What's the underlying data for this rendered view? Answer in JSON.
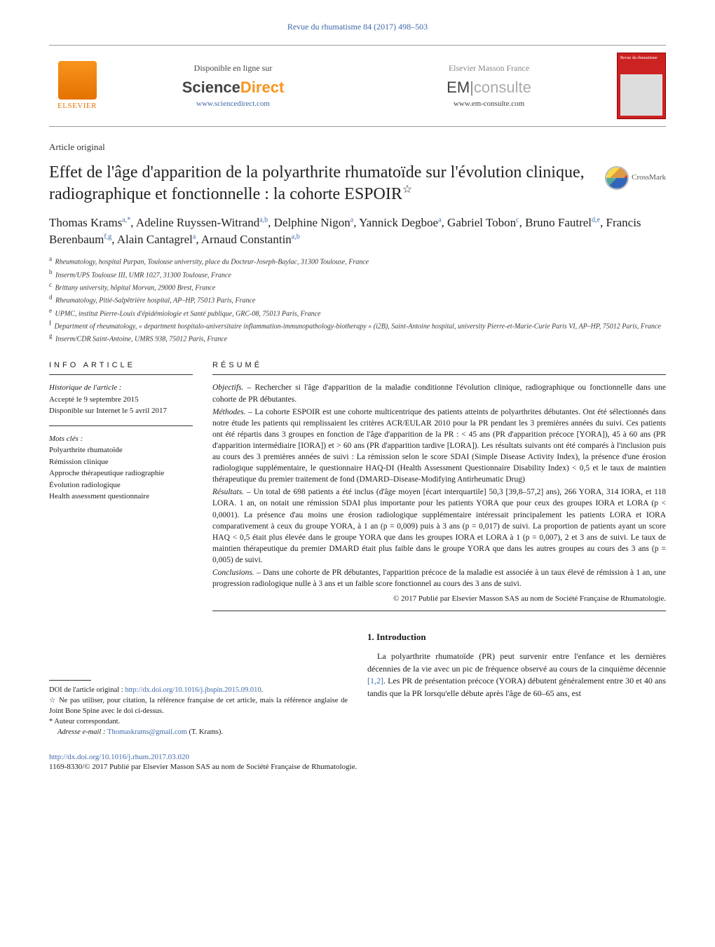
{
  "journal_header": "Revue du rhumatisme 84 (2017) 498–503",
  "topbar": {
    "elsevier": "ELSEVIER",
    "sd_available": "Disponible en ligne sur",
    "sd_brand_1": "Science",
    "sd_brand_2": "Direct",
    "sd_url": "www.sciencedirect.com",
    "em_brand": "Elsevier Masson France",
    "em_logo_1": "EM",
    "em_logo_bar": "|",
    "em_logo_2": "consulte",
    "em_url": "www.em-consulte.com",
    "cover_title": "Revue du rhumatisme"
  },
  "article_type": "Article original",
  "title": "Effet de l'âge d'apparition de la polyarthrite rhumatoïde sur l'évolution clinique, radiographique et fonctionnelle : la cohorte ESPOIR",
  "title_marker": "☆",
  "crossmark": "CrossMark",
  "authors_html": "Thomas Krams<sup>a,*</sup>, Adeline Ruyssen-Witrand<sup>a,b</sup>, Delphine Nigon<sup>a</sup>, Yannick Degboe<sup>a</sup>, Gabriel Tobon<sup>c</sup>, Bruno Fautrel<sup>d,e</sup>, Francis Berenbaum<sup>f,g</sup>, Alain Cantagrel<sup>a</sup>, Arnaud Constantin<sup>a,b</sup>",
  "affiliations": [
    {
      "key": "a",
      "text": "Rheumatology, hospital Purpan, Toulouse university, place du Docteur-Joseph-Baylac, 31300 Toulouse, France"
    },
    {
      "key": "b",
      "text": "Inserm/UPS Toulouse III, UMR 1027, 31300 Toulouse, France"
    },
    {
      "key": "c",
      "text": "Brittany university, hôpital Morvan, 29000 Brest, France"
    },
    {
      "key": "d",
      "text": "Rheumatology, Pitié-Salpêtrière hospital, AP–HP, 75013 Paris, France"
    },
    {
      "key": "e",
      "text": "UPMC, institut Pierre-Louis d'épidémiologie et Santé publique, GRC-08, 75013 Paris, France"
    },
    {
      "key": "f",
      "text": "Department of rheumatology, « department hospitalo-universitaire inflammation-immunopathology-biotherapy » (i2B), Saint-Antoine hospital, university Pierre-et-Marie-Curie Paris VI, AP–HP, 75012 Paris, France"
    },
    {
      "key": "g",
      "text": "Inserm/CDR Saint-Antoine, UMRS 938, 75012 Paris, France"
    }
  ],
  "info": {
    "heading": "INFO ARTICLE",
    "history_label": "Historique de l'article :",
    "accepted": "Accepté le 9 septembre 2015",
    "online": "Disponible sur Internet le 5 avril 2017",
    "keywords_label": "Mots clés :",
    "keywords": [
      "Polyarthrite rhumatoïde",
      "Rémission clinique",
      "Approche thérapeutique radiographie",
      "Évolution radiologique",
      "Health assessment questionnaire"
    ]
  },
  "abstract": {
    "heading": "RÉSUMÉ",
    "objectifs_label": "Objectifs. –",
    "objectifs": " Rechercher si l'âge d'apparition de la maladie conditionne l'évolution clinique, radiographique ou fonctionnelle dans une cohorte de PR débutantes.",
    "methodes_label": "Méthodes. –",
    "methodes": " La cohorte ESPOIR est une cohorte multicentrique des patients atteints de polyarthrites débutantes. Ont été sélectionnés dans notre étude les patients qui remplissaient les critères ACR/EULAR 2010 pour la PR pendant les 3 premières années du suivi. Ces patients ont été répartis dans 3 groupes en fonction de l'âge d'apparition de la PR : < 45 ans (PR d'apparition précoce [YORA]), 45 à 60 ans (PR d'apparition intermédiaire [IORA]) et > 60 ans (PR d'apparition tardive [LORA]). Les résultats suivants ont été comparés à l'inclusion puis au cours des 3 premières années de suivi : La rémission selon le score SDAI (Simple Disease Activity Index), la présence d'une érosion radiologique supplémentaire, le questionnaire HAQ-DI (Health Assessment Questionnaire Disability Index) < 0,5 et le taux de maintien thérapeutique du premier traitement de fond (DMARD–Disease-Modifying Antirheumatic Drug)",
    "resultats_label": "Résultats. –",
    "resultats": " Un total de 698 patients a été inclus (d'âge moyen [écart interquartile] 50,3 [39,8–57,2] ans), 266 YORA, 314 IORA, et 118 LORA. 1 an, on notait une rémission SDAI plus importante pour les patients YORA que pour ceux des groupes IORA et LORA (p < 0,0001). La présence d'au moins une érosion radiologique supplémentaire intéressait principalement les patients LORA et IORA comparativement à ceux du groupe YORA, à 1 an (p = 0,009) puis à 3 ans (p = 0,017) de suivi. La proportion de patients ayant un score HAQ < 0,5 était plus élevée dans le groupe YORA que dans les groupes IORA et LORA à 1 (p = 0,007), 2 et 3 ans de suivi. Le taux de maintien thérapeutique du premier DMARD était plus faible dans le groupe YORA que dans les autres groupes au cours des 3 ans (p = 0,005) de suivi.",
    "conclusions_label": "Conclusions. –",
    "conclusions": " Dans une cohorte de PR débutantes, l'apparition précoce de la maladie est associée à un taux élevé de rémission à 1 an, une progression radiologique nulle à 3 ans et un faible score fonctionnel au cours des 3 ans de suivi.",
    "copyright": "© 2017 Publié par Elsevier Masson SAS au nom de Société Française de Rhumatologie."
  },
  "footnotes": {
    "doi_label": "DOI de l'article original : ",
    "doi_url": "http://dx.doi.org/10.1016/j.jbspin.2015.09.010",
    "note_marker": "☆",
    "note_text": " Ne pas utiliser, pour citation, la référence française de cet article, mais la référence anglaise de Joint Bone Spine avec le doi ci-dessus.",
    "corr_marker": "*",
    "corr_text": " Auteur correspondant.",
    "email_label": "Adresse e-mail : ",
    "email": "Thomaskrams@gmail.com",
    "email_suffix": " (T. Krams)."
  },
  "intro": {
    "heading": "1. Introduction",
    "body_1": "La polyarthrite rhumatoïde (PR) peut survenir entre l'enfance et les dernières décennies de la vie avec un pic de fréquence observé au cours de la cinquième décennie ",
    "ref1": "[1,2]",
    "body_2": ". Les PR de présentation précoce (YORA) débutent généralement entre 30 et 40 ans tandis que la PR lorsqu'elle débute après l'âge de 60–65 ans, est"
  },
  "footer": {
    "doi": "http://dx.doi.org/10.1016/j.rhum.2017.03.020",
    "issn": "1169-8330/© 2017 Publié par Elsevier Masson SAS au nom de Société Française de Rhumatologie."
  },
  "colors": {
    "link": "#3e68a8",
    "elsevier_orange": "#e57200",
    "sd_orange": "#f7941e"
  }
}
